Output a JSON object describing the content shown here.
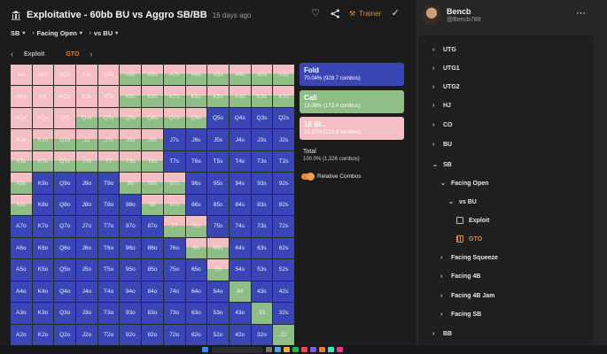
{
  "header": {
    "title": "Exploitative - 60bb BU vs Aggro SB/BB",
    "ago": "16 days ago",
    "trainer_label": "Trainer"
  },
  "breadcrumb": [
    "SB",
    "Facing Open",
    "vs BU"
  ],
  "tabs": {
    "items": [
      "Exploit",
      "GTO"
    ],
    "active": "GTO"
  },
  "legend": {
    "fold": {
      "name": "Fold",
      "pct": "70.04% (928.7 combos)",
      "color": "#3a46b5"
    },
    "call": {
      "name": "Call",
      "pct": "13.08% (173.4 combos)",
      "color": "#8fbd86"
    },
    "raise": {
      "name": "18 Bl...",
      "pct": "16.87% (223.8 combos)",
      "color": "#f3bfc3"
    },
    "total_label": "Total",
    "total_value": "100.0% (1,326 combos)",
    "relative_label": "Relative Combos"
  },
  "user": {
    "name": "Bencb",
    "handle": "@Bencb789"
  },
  "tree": [
    {
      "label": "UTG",
      "arrow": "›",
      "level": 0
    },
    {
      "label": "UTG1",
      "arrow": "›",
      "level": 0
    },
    {
      "label": "UTG2",
      "arrow": "›",
      "level": 0
    },
    {
      "label": "HJ",
      "arrow": "›",
      "level": 0
    },
    {
      "label": "CO",
      "arrow": "›",
      "level": 0
    },
    {
      "label": "BU",
      "arrow": "›",
      "level": 0
    },
    {
      "label": "SB",
      "arrow": "⌄",
      "level": 0
    },
    {
      "label": "Facing Open",
      "arrow": "⌄",
      "level": 1
    },
    {
      "label": "vs BU",
      "arrow": "⌄",
      "level": 2
    },
    {
      "label": "Exploit",
      "arrow": "",
      "level": 3,
      "icon": "grid"
    },
    {
      "label": "GTO",
      "arrow": "",
      "level": 3,
      "icon": "grid-orange",
      "selected": true
    },
    {
      "label": "Facing Squeeze",
      "arrow": "›",
      "level": 1
    },
    {
      "label": "Facing 4B",
      "arrow": "›",
      "level": 1
    },
    {
      "label": "Facing 4B Jam",
      "arrow": "›",
      "level": 1
    },
    {
      "label": "Facing SB",
      "arrow": "›",
      "level": 1
    },
    {
      "label": "BB",
      "arrow": "›",
      "level": 0
    }
  ],
  "grid": {
    "labels": [
      [
        "AA",
        "AKs",
        "AQs",
        "AJs",
        "ATs",
        "A9s",
        "A8s",
        "A7s",
        "A6s",
        "A5s",
        "A4s",
        "A3s",
        "A2s"
      ],
      [
        "AKo",
        "KK",
        "KQs",
        "KJs",
        "KTs",
        "K9s",
        "K8s",
        "K7s",
        "K6s",
        "K5s",
        "K4s",
        "K3s",
        "K2s"
      ],
      [
        "AQo",
        "KQo",
        "QQ",
        "QJs",
        "QTs",
        "Q9s",
        "Q8s",
        "Q7s",
        "Q6s",
        "Q5s",
        "Q4s",
        "Q3s",
        "Q2s"
      ],
      [
        "AJo",
        "KJo",
        "QJo",
        "JJ",
        "JTs",
        "J9s",
        "J8s",
        "J7s",
        "J6s",
        "J5s",
        "J4s",
        "J3s",
        "J2s"
      ],
      [
        "ATo",
        "KTo",
        "QTo",
        "JTo",
        "TT",
        "T9s",
        "T8s",
        "T7s",
        "T6s",
        "T5s",
        "T4s",
        "T3s",
        "T2s"
      ],
      [
        "A9o",
        "K9o",
        "Q9o",
        "J9o",
        "T9o",
        "99",
        "98s",
        "97s",
        "96s",
        "95s",
        "94s",
        "93s",
        "92s"
      ],
      [
        "A8o",
        "K8o",
        "Q8o",
        "J8o",
        "T8o",
        "98o",
        "88",
        "87s",
        "86s",
        "85s",
        "84s",
        "83s",
        "82s"
      ],
      [
        "A7o",
        "K7o",
        "Q7o",
        "J7o",
        "T7o",
        "97o",
        "87o",
        "77",
        "76s",
        "75s",
        "74s",
        "73s",
        "72s"
      ],
      [
        "A6o",
        "K6o",
        "Q6o",
        "J6o",
        "T6o",
        "96o",
        "86o",
        "76o",
        "66",
        "65s",
        "64s",
        "63s",
        "62s"
      ],
      [
        "A5o",
        "K5o",
        "Q5o",
        "J5o",
        "T5o",
        "95o",
        "85o",
        "75o",
        "65o",
        "55",
        "54s",
        "53s",
        "52s"
      ],
      [
        "A4o",
        "K4o",
        "Q4o",
        "J4o",
        "T4o",
        "94o",
        "84o",
        "74o",
        "64o",
        "54o",
        "44",
        "43s",
        "42s"
      ],
      [
        "A3o",
        "K3o",
        "Q3o",
        "J3o",
        "T3o",
        "93o",
        "83o",
        "73o",
        "63o",
        "53o",
        "43o",
        "33",
        "32s"
      ],
      [
        "A2o",
        "K2o",
        "Q2o",
        "J2o",
        "T2o",
        "92o",
        "82o",
        "72o",
        "62o",
        "52o",
        "42o",
        "32o",
        "22"
      ]
    ],
    "actions": [
      [
        "R",
        "R",
        "R",
        "R",
        "R",
        "M",
        "M",
        "M",
        "M",
        "M",
        "M",
        "M",
        "M"
      ],
      [
        "R",
        "R",
        "R",
        "R",
        "R",
        "M",
        "M",
        "M",
        "M",
        "M",
        "M",
        "M",
        "M"
      ],
      [
        "R",
        "R",
        "R",
        "M",
        "M",
        "M",
        "M",
        "M",
        "M",
        "F",
        "F",
        "F",
        "F"
      ],
      [
        "R",
        "M",
        "M",
        "M",
        "M",
        "M",
        "M",
        "F",
        "F",
        "F",
        "F",
        "F",
        "F"
      ],
      [
        "M",
        "M",
        "M",
        "M",
        "M",
        "M",
        "M",
        "F",
        "F",
        "F",
        "F",
        "F",
        "F"
      ],
      [
        "M",
        "F",
        "F",
        "F",
        "F",
        "M",
        "M",
        "M",
        "F",
        "F",
        "F",
        "F",
        "F"
      ],
      [
        "M",
        "F",
        "F",
        "F",
        "F",
        "F",
        "M",
        "M",
        "F",
        "F",
        "F",
        "F",
        "F"
      ],
      [
        "F",
        "F",
        "F",
        "F",
        "F",
        "F",
        "F",
        "M",
        "M",
        "F",
        "F",
        "F",
        "F"
      ],
      [
        "F",
        "F",
        "F",
        "F",
        "F",
        "F",
        "F",
        "F",
        "M",
        "M",
        "F",
        "F",
        "F"
      ],
      [
        "F",
        "F",
        "F",
        "F",
        "F",
        "F",
        "F",
        "F",
        "F",
        "M",
        "F",
        "F",
        "F"
      ],
      [
        "F",
        "F",
        "F",
        "F",
        "F",
        "F",
        "F",
        "F",
        "F",
        "F",
        "C",
        "F",
        "F"
      ],
      [
        "F",
        "F",
        "F",
        "F",
        "F",
        "F",
        "F",
        "F",
        "F",
        "F",
        "F",
        "C",
        "F"
      ],
      [
        "F",
        "F",
        "F",
        "F",
        "F",
        "F",
        "F",
        "F",
        "F",
        "F",
        "F",
        "F",
        "C"
      ]
    ]
  }
}
